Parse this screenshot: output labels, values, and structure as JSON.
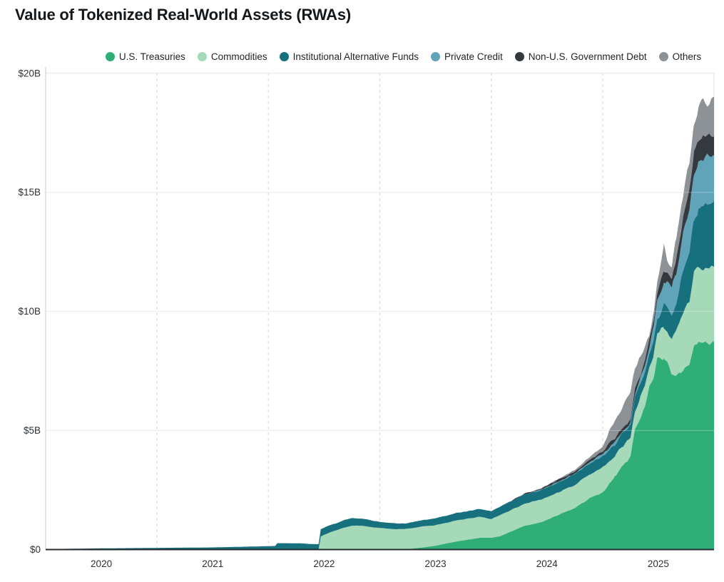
{
  "title": "Value of Tokenized Real-World Assets (RWAs)",
  "chart_data": {
    "type": "area",
    "stacked": true,
    "title": "Value of Tokenized Real-World Assets (RWAs)",
    "unit": "USD billions",
    "xlim": [
      2020.0,
      2026.0
    ],
    "ylim": [
      0,
      20
    ],
    "legend_position": "top-center",
    "grid": {
      "horizontal": "solid",
      "vertical": "dashed-year-boundaries"
    },
    "y_ticks": [
      {
        "value": 0,
        "label": "$0"
      },
      {
        "value": 5,
        "label": "$5B"
      },
      {
        "value": 10,
        "label": "$10B"
      },
      {
        "value": 15,
        "label": "$15B"
      },
      {
        "value": 20,
        "label": "$20B"
      }
    ],
    "x_ticks": [
      {
        "value": 2020.5,
        "label": "2020"
      },
      {
        "value": 2021.5,
        "label": "2021"
      },
      {
        "value": 2022.5,
        "label": "2022"
      },
      {
        "value": 2023.5,
        "label": "2023"
      },
      {
        "value": 2024.5,
        "label": "2024"
      },
      {
        "value": 2025.5,
        "label": "2025"
      }
    ],
    "x_gridlines": [
      2021,
      2022,
      2023,
      2024,
      2025
    ],
    "x": [
      2020.0,
      2020.5,
      2021.0,
      2021.5,
      2021.8,
      2022.06,
      2022.08,
      2022.3,
      2022.38,
      2022.45,
      2022.47,
      2022.55,
      2022.62,
      2022.68,
      2022.75,
      2022.85,
      2022.95,
      2023.05,
      2023.15,
      2023.25,
      2023.4,
      2023.5,
      2023.6,
      2023.7,
      2023.8,
      2023.9,
      2024.0,
      2024.08,
      2024.15,
      2024.3,
      2024.45,
      2024.6,
      2024.75,
      2024.9,
      2025.0,
      2025.06,
      2025.12,
      2025.17,
      2025.22,
      2025.25,
      2025.29,
      2025.34,
      2025.38,
      2025.42,
      2025.46,
      2025.49,
      2025.55,
      2025.58,
      2025.62,
      2025.66,
      2025.7,
      2025.74,
      2025.78,
      2025.82,
      2025.86,
      2025.9,
      2025.94,
      2026.0
    ],
    "series": [
      {
        "name": "U.S. Treasuries",
        "color": "#2fae78",
        "values": [
          0,
          0,
          0,
          0,
          0,
          0,
          0,
          0,
          0,
          0,
          0,
          0,
          0,
          0,
          0,
          0,
          0,
          0,
          0,
          0.02,
          0.1,
          0.16,
          0.26,
          0.35,
          0.42,
          0.5,
          0.5,
          0.56,
          0.7,
          1.0,
          1.15,
          1.45,
          1.75,
          2.2,
          2.4,
          2.75,
          3.1,
          3.5,
          3.72,
          3.9,
          5.0,
          5.6,
          6.0,
          6.8,
          7.3,
          8.05,
          8.0,
          7.8,
          7.4,
          7.3,
          7.5,
          7.6,
          7.8,
          8.6,
          8.75,
          8.6,
          8.65,
          8.75
        ]
      },
      {
        "name": "Commodities",
        "color": "#a6d9b7",
        "values": [
          0,
          0,
          0,
          0,
          0,
          0,
          0,
          0,
          0,
          0,
          0.55,
          0.72,
          0.82,
          0.93,
          1.0,
          1.0,
          0.93,
          0.89,
          0.85,
          0.85,
          0.88,
          0.86,
          0.87,
          0.89,
          0.88,
          0.88,
          0.78,
          0.88,
          0.9,
          0.93,
          0.95,
          0.95,
          0.96,
          1.0,
          1.05,
          0.95,
          0.85,
          0.78,
          0.8,
          0.82,
          0.8,
          0.85,
          0.9,
          0.85,
          0.9,
          1.0,
          1.4,
          1.45,
          1.5,
          1.9,
          2.2,
          2.5,
          2.65,
          3.0,
          3.15,
          3.2,
          3.15,
          3.15
        ]
      },
      {
        "name": "Institutional Alternative Funds",
        "color": "#17707d",
        "values": [
          0.02,
          0.05,
          0.07,
          0.09,
          0.12,
          0.15,
          0.27,
          0.26,
          0.23,
          0.23,
          0.3,
          0.31,
          0.3,
          0.31,
          0.32,
          0.29,
          0.26,
          0.25,
          0.24,
          0.24,
          0.27,
          0.29,
          0.3,
          0.31,
          0.32,
          0.33,
          0.33,
          0.36,
          0.36,
          0.38,
          0.39,
          0.42,
          0.44,
          0.46,
          0.48,
          0.5,
          0.52,
          0.55,
          0.52,
          0.52,
          0.55,
          0.58,
          0.6,
          0.55,
          0.6,
          0.62,
          0.9,
          0.9,
          1.0,
          1.15,
          1.5,
          1.9,
          2.15,
          2.3,
          2.4,
          2.55,
          2.6,
          2.6
        ]
      },
      {
        "name": "Private Credit",
        "color": "#61a3b8",
        "values": [
          0,
          0,
          0,
          0,
          0,
          0,
          0,
          0,
          0,
          0,
          0,
          0,
          0,
          0,
          0,
          0,
          0,
          0,
          0,
          0,
          0,
          0,
          0,
          0,
          0,
          0,
          0,
          0,
          0,
          0.01,
          0.02,
          0.03,
          0.04,
          0.06,
          0.07,
          0.08,
          0.08,
          0.09,
          0.1,
          0.11,
          0.14,
          0.17,
          0.22,
          0.3,
          0.5,
          0.7,
          1.0,
          1.05,
          1.1,
          1.3,
          1.5,
          1.7,
          1.85,
          2.0,
          2.0,
          2.05,
          2.05,
          2.05
        ]
      },
      {
        "name": "Non-U.S. Government Debt",
        "color": "#34393e",
        "values": [
          0,
          0,
          0,
          0,
          0,
          0,
          0,
          0,
          0,
          0,
          0,
          0,
          0,
          0,
          0,
          0,
          0,
          0,
          0,
          0,
          0,
          0,
          0,
          0,
          0,
          0,
          0,
          0.01,
          0.02,
          0.03,
          0.04,
          0.07,
          0.09,
          0.12,
          0.13,
          0.15,
          0.16,
          0.17,
          0.16,
          0.17,
          0.2,
          0.22,
          0.25,
          0.25,
          0.27,
          0.28,
          0.4,
          0.4,
          0.45,
          0.5,
          0.55,
          0.6,
          0.65,
          0.7,
          0.75,
          0.85,
          0.9,
          0.92
        ]
      },
      {
        "name": "Others",
        "color": "#8d9297",
        "values": [
          0,
          0,
          0,
          0,
          0,
          0,
          0,
          0,
          0,
          0,
          0,
          0,
          0,
          0,
          0,
          0,
          0,
          0,
          0,
          0,
          0,
          0,
          0,
          0,
          0,
          0,
          0,
          0,
          0,
          0,
          0.02,
          0.04,
          0.07,
          0.12,
          0.18,
          0.55,
          0.75,
          0.85,
          1.02,
          1.08,
          0.9,
          0.7,
          0.5,
          0.25,
          0.43,
          0.6,
          1.2,
          0.6,
          0.55,
          0.85,
          1.0,
          1.1,
          1.2,
          1.3,
          1.3,
          1.75,
          1.35,
          1.5
        ]
      }
    ]
  },
  "colors": {
    "grid_horizontal": "#e4e5e6",
    "grid_vertical_dashed": "#d4d6d8",
    "axis_bottom": "#282d31",
    "axis_left_border": "#c6cacc",
    "plot_right_border": "#dfe1e2",
    "tick_label": "#2c3136",
    "title_text": "#14181b"
  }
}
